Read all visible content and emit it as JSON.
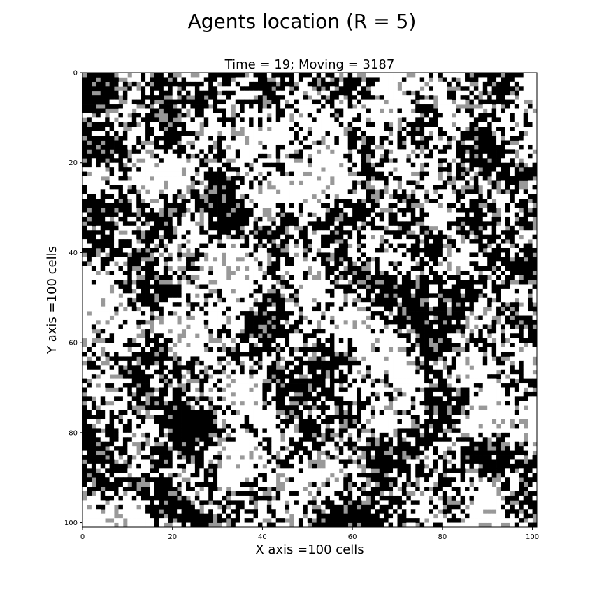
{
  "figure": {
    "suptitle": "Agents location (R = 5)"
  },
  "chart_data": {
    "type": "heatmap",
    "title": "Time = 19; Moving = 3187",
    "xlabel": "X axis =100 cells",
    "ylabel": "Y axis =100 cells",
    "xlim": [
      0,
      101
    ],
    "ylim": [
      101,
      0
    ],
    "grid": false,
    "x_ticks": [
      "0",
      "20",
      "40",
      "60",
      "80",
      "100"
    ],
    "y_ticks": [
      "0",
      "20",
      "40",
      "60",
      "80",
      "100"
    ],
    "colors": {
      "empty": "#999999",
      "group_a": "#ffffff",
      "group_b": "#000000"
    },
    "grid_size": [
      101,
      101
    ],
    "cell_values": "random lattice of three agent states (empty / group A / group B); per-cell values not legible"
  }
}
